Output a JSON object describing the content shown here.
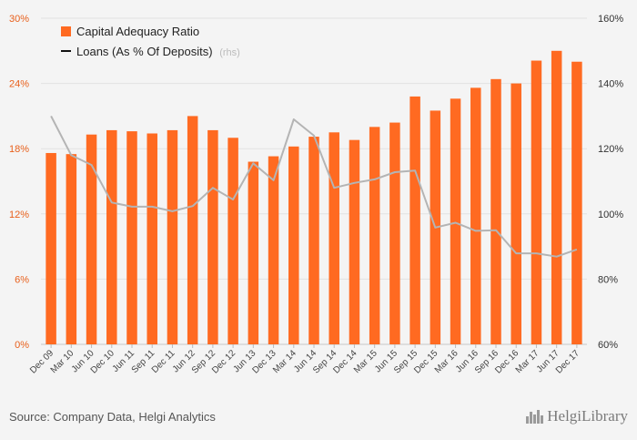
{
  "chart_data": {
    "type": "bar+line",
    "categories": [
      "Dec 09",
      "Mar 10",
      "Jun 10",
      "Dec 10",
      "Jun 11",
      "Sep 11",
      "Dec 11",
      "Jun 12",
      "Sep 12",
      "Dec 12",
      "Jun 13",
      "Dec 13",
      "Mar 14",
      "Jun 14",
      "Sep 14",
      "Dec 14",
      "Mar 15",
      "Jun 15",
      "Sep 15",
      "Dec 15",
      "Mar 16",
      "Jun 16",
      "Sep 16",
      "Dec 16",
      "Mar 17",
      "Jun 17",
      "Dec 17"
    ],
    "series": [
      {
        "name": "Capital Adequacy Ratio",
        "axis": "left",
        "type": "bar",
        "values": [
          17.6,
          17.5,
          19.3,
          19.7,
          19.6,
          19.4,
          19.7,
          21.0,
          19.7,
          19.0,
          16.8,
          17.3,
          18.2,
          19.1,
          19.5,
          18.8,
          20.0,
          20.4,
          22.8,
          21.5,
          22.6,
          23.6,
          24.4,
          24.0,
          26.1,
          27.0,
          26.0
        ]
      },
      {
        "name": "Loans (As % Of Deposits)",
        "axis": "right",
        "type": "line",
        "values": [
          130,
          118,
          115,
          103.5,
          102.2,
          102.2,
          100.8,
          102.4,
          108,
          104.4,
          115.5,
          110.3,
          129,
          124,
          108,
          109.5,
          110.6,
          112.8,
          113.3,
          95.8,
          97.3,
          94.8,
          95,
          87.9,
          87.9,
          86.9,
          89.1
        ]
      }
    ],
    "legend": {
      "bar_label": "Capital Adequacy Ratio",
      "line_label": "Loans (As % Of Deposits)",
      "line_suffix": "(rhs)"
    },
    "left_axis": {
      "ticks": [
        "0%",
        "6%",
        "12%",
        "18%",
        "24%",
        "30%"
      ],
      "range": [
        0,
        30
      ]
    },
    "right_axis": {
      "ticks": [
        "60%",
        "80%",
        "100%",
        "120%",
        "140%",
        "160%"
      ],
      "range": [
        60,
        160
      ]
    },
    "colors": {
      "bar": "#ff6a21",
      "line": "#b4b4b4",
      "left_axis_text": "#e8601c",
      "right_axis_text": "#333333"
    }
  },
  "footer": {
    "source": "Source: Company Data, Helgi Analytics",
    "logo": "HelgiLibrary"
  }
}
